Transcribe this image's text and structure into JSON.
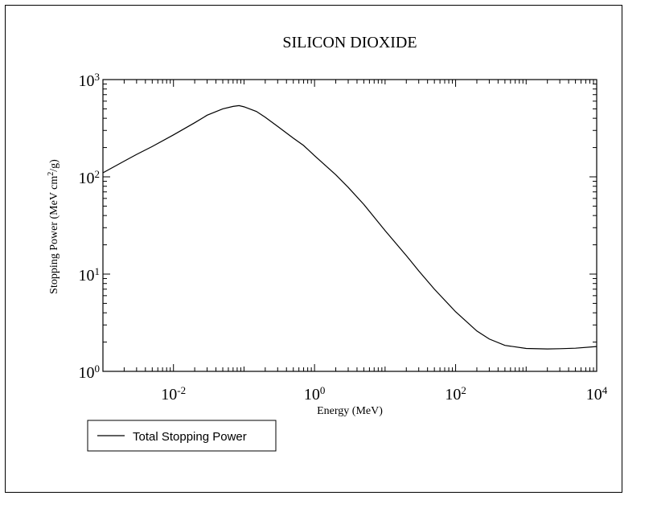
{
  "chart_data": {
    "type": "line",
    "title": "SILICON DIOXIDE",
    "xlabel": "Energy (MeV)",
    "ylabel_main": "Stopping Power (MeV cm",
    "ylabel_sup": "2",
    "ylabel_tail": "/g)",
    "x_scale": "log",
    "y_scale": "log",
    "xlim": [
      0.001,
      10000
    ],
    "ylim": [
      1,
      1000
    ],
    "x_ticks": [
      {
        "base": "10",
        "exp": "-2",
        "value": 0.01
      },
      {
        "base": "10",
        "exp": "0",
        "value": 1
      },
      {
        "base": "10",
        "exp": "2",
        "value": 100
      },
      {
        "base": "10",
        "exp": "4",
        "value": 10000
      }
    ],
    "y_ticks": [
      {
        "base": "10",
        "exp": "0",
        "value": 1
      },
      {
        "base": "10",
        "exp": "1",
        "value": 10
      },
      {
        "base": "10",
        "exp": "2",
        "value": 100
      },
      {
        "base": "10",
        "exp": "3",
        "value": 1000
      }
    ],
    "grid": false,
    "legend_position": "bottom-left, below plot",
    "series": [
      {
        "name": "Total Stopping Power",
        "color": "#000000",
        "x": [
          0.001,
          0.002,
          0.003,
          0.005,
          0.01,
          0.02,
          0.03,
          0.05,
          0.07,
          0.085,
          0.1,
          0.15,
          0.2,
          0.3,
          0.5,
          0.7,
          1,
          2,
          3,
          5,
          10,
          20,
          30,
          50,
          100,
          200,
          300,
          500,
          1000,
          2000,
          3000,
          5000,
          10000
        ],
        "y": [
          110,
          145,
          170,
          205,
          270,
          360,
          430,
          500,
          530,
          540,
          525,
          470,
          410,
          330,
          250,
          210,
          165,
          105,
          78,
          52,
          28,
          15.5,
          10.8,
          7.0,
          4.1,
          2.6,
          2.15,
          1.85,
          1.72,
          1.7,
          1.71,
          1.73,
          1.8
        ]
      }
    ]
  }
}
